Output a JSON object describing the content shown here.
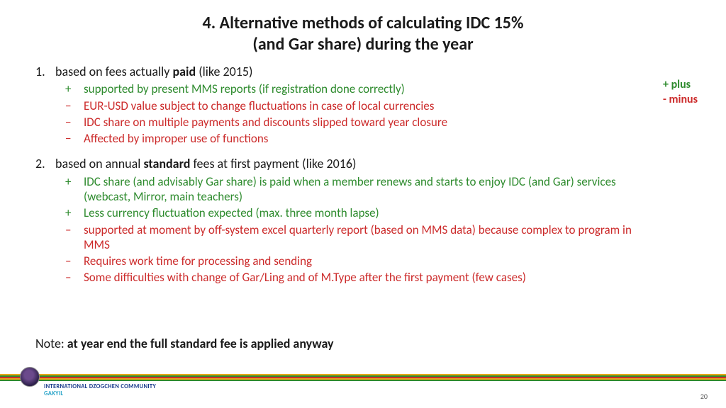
{
  "title_line1": "4. Alternative methods of calculating  IDC 15%",
  "title_line2": "(and Gar share) during the year",
  "legend": {
    "plus": "+ plus",
    "minus": "-  minus"
  },
  "item1": {
    "num": "1.",
    "head_pre": "based on fees actually ",
    "head_bold": "paid",
    "head_post": " (like 2015)",
    "rows": [
      {
        "sign": "plus",
        "bullet": "+",
        "text": "supported by present MMS reports (if registration done correctly)"
      },
      {
        "sign": "minus",
        "bullet": "−",
        "text": "EUR-USD value subject to change fluctuations in case of local currencies"
      },
      {
        "sign": "minus",
        "bullet": "−",
        "text": "IDC share on multiple payments and discounts slipped toward year closure"
      },
      {
        "sign": "minus",
        "bullet": "−",
        "text": "Affected by improper use of functions"
      }
    ]
  },
  "item2": {
    "num": "2.",
    "head_pre": "based on annual ",
    "head_bold": "standard",
    "head_post": " fees at first payment (like 2016)",
    "rows": [
      {
        "sign": "plus",
        "bullet": "+",
        "text": "IDC share (and advisably Gar share) is paid when a member renews and starts to enjoy IDC (and Gar) services (webcast, Mirror, main teachers)"
      },
      {
        "sign": "plus",
        "bullet": "+",
        "text": "Less currency fluctuation expected (max. three month lapse)"
      },
      {
        "sign": "minus",
        "bullet": "–",
        "text": "supported at moment by off-system excel quarterly report (based on MMS data) because complex to program in MMS"
      },
      {
        "sign": "minus",
        "bullet": "–",
        "text": "Requires work time for processing and sending"
      },
      {
        "sign": "minus",
        "bullet": "–",
        "text": "Some difficulties with change of  Gar/Ling and of M.Type  after the first payment (few cases)"
      }
    ]
  },
  "note_pre": "Note: ",
  "note_bold": "at year end the full standard fee is applied anyway",
  "footer": {
    "line1": "INTERNATIONAL DZOGCHEN COMMUNITY",
    "line2": "GAKYIL",
    "page": "20",
    "stripe_colors": [
      "#e6a817",
      "#2e8b2e",
      "#cc2b2b",
      "#e6a817",
      "#2e8b2e"
    ]
  },
  "colors": {
    "plus": "#2e8b2e",
    "minus": "#cc2b2b",
    "text": "#1a1a1a"
  }
}
